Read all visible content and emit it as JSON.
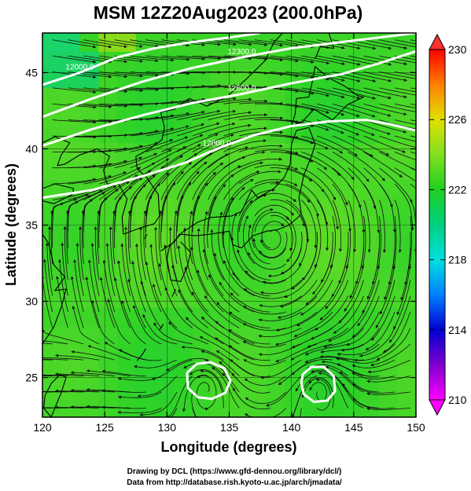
{
  "chart_data": {
    "type": "heatmap",
    "title": "MSM 12Z20Aug2023 (200.0hPa)",
    "xlabel": "Longitude (degrees)",
    "ylabel": "Latitude  (degrees)",
    "xlim": [
      120,
      150
    ],
    "ylim": [
      22.4,
      47.6
    ],
    "x_ticks": [
      120,
      125,
      130,
      135,
      140,
      145,
      150
    ],
    "x_tick_labels": [
      "120",
      "125",
      "130",
      "135",
      "140",
      "145",
      "150"
    ],
    "y_ticks": [
      25,
      30,
      35,
      40,
      45
    ],
    "y_tick_labels": [
      "25",
      "30",
      "35",
      "40",
      "45"
    ],
    "grid": true,
    "colorbar": {
      "min": 210,
      "max": 230,
      "ticks": [
        210,
        214,
        218,
        222,
        226,
        230
      ],
      "tick_labels": [
        "210",
        "214",
        "218",
        "222",
        "226",
        "230"
      ],
      "stops": [
        "#ff00ff",
        "#8000d0",
        "#0000d0",
        "#0080ff",
        "#00e0e0",
        "#00d080",
        "#20d020",
        "#80e020",
        "#e0e000",
        "#ff8000",
        "#ff0000"
      ]
    },
    "field_value_typical": 222.5,
    "geopotential_contours": [
      {
        "label": "12000.0",
        "points": [
          [
            120.0,
            44.2
          ],
          [
            123.0,
            45.0
          ],
          [
            126.0,
            46.0
          ],
          [
            129.0,
            46.6
          ],
          [
            132.0,
            47.0
          ],
          [
            135.0,
            47.3
          ],
          [
            137.5,
            47.6
          ]
        ]
      },
      {
        "label": "12300.0",
        "points": [
          [
            120.0,
            42.1
          ],
          [
            124.0,
            43.3
          ],
          [
            128.0,
            44.4
          ],
          [
            132.0,
            45.3
          ],
          [
            136.0,
            46.0
          ],
          [
            140.0,
            46.6
          ],
          [
            144.0,
            47.0
          ],
          [
            148.0,
            47.4
          ],
          [
            150.0,
            47.6
          ]
        ]
      },
      {
        "label": "12600.0",
        "points": [
          [
            120.0,
            40.2
          ],
          [
            124.0,
            41.3
          ],
          [
            128.0,
            42.2
          ],
          [
            132.0,
            43.0
          ],
          [
            136.0,
            43.6
          ],
          [
            140.0,
            44.3
          ],
          [
            144.0,
            44.9
          ],
          [
            147.0,
            45.6
          ],
          [
            150.0,
            46.4
          ]
        ]
      },
      {
        "label": "12600.0",
        "points": [
          [
            120.0,
            36.8
          ],
          [
            124.0,
            37.3
          ],
          [
            128.0,
            38.2
          ],
          [
            131.5,
            39.1
          ],
          [
            134.0,
            40.0
          ],
          [
            137.0,
            40.9
          ],
          [
            140.0,
            41.5
          ],
          [
            143.0,
            41.8
          ],
          [
            146.0,
            41.9
          ],
          [
            148.0,
            41.6
          ],
          [
            150.0,
            41.2
          ]
        ]
      },
      {
        "label": "",
        "points": [
          [
            131.6,
            25.3
          ],
          [
            132.4,
            25.9
          ],
          [
            133.5,
            26.0
          ],
          [
            134.6,
            25.6
          ],
          [
            135.1,
            24.8
          ],
          [
            134.7,
            24.0
          ],
          [
            133.6,
            23.6
          ],
          [
            132.5,
            23.7
          ],
          [
            131.7,
            24.3
          ],
          [
            131.6,
            25.3
          ]
        ]
      },
      {
        "label": "",
        "points": [
          [
            140.9,
            25.2
          ],
          [
            141.6,
            25.7
          ],
          [
            142.6,
            25.7
          ],
          [
            143.4,
            25.1
          ],
          [
            143.5,
            24.1
          ],
          [
            142.9,
            23.5
          ],
          [
            141.8,
            23.4
          ],
          [
            141.0,
            23.9
          ],
          [
            140.8,
            24.6
          ],
          [
            140.9,
            25.2
          ]
        ]
      }
    ],
    "circulation_centers": [
      {
        "type": "anticyclone",
        "lon": 138.5,
        "lat": 34.2
      },
      {
        "type": "cyclone",
        "lon": 133.2,
        "lat": 24.6
      },
      {
        "type": "cyclone",
        "lon": 142.2,
        "lat": 24.5
      }
    ],
    "credits": [
      "Drawing by DCL (https://www.gfd-dennou.org/library/dcl/)",
      "Data from http://database.rish.kyoto-u.ac.jp/arch/jmadata/"
    ]
  },
  "colors": {
    "field_base": "#3cd632",
    "contour": "#ffffff",
    "streamline": "#101010",
    "coast": "#000000"
  }
}
